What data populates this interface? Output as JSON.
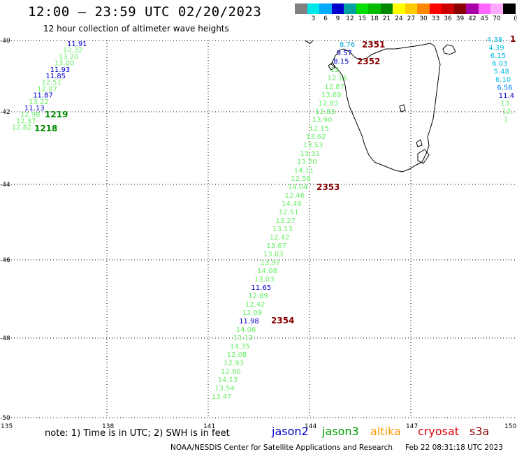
{
  "header": {
    "title": "12:00 – 23:59 UTC 02/20/2023",
    "subtitle": "12 hour collection of altimeter wave heights"
  },
  "legend": {
    "unit": "(ft)",
    "items": [
      {
        "color": "#808080",
        "label": ""
      },
      {
        "color": "#00e8e8",
        "label": "3"
      },
      {
        "color": "#00aaff",
        "label": "6"
      },
      {
        "color": "#0000cc",
        "label": "9"
      },
      {
        "color": "#00a0a0",
        "label": "12"
      },
      {
        "color": "#00dd00",
        "label": "15"
      },
      {
        "color": "#00bb00",
        "label": "18"
      },
      {
        "color": "#008800",
        "label": "21"
      },
      {
        "color": "#ffff00",
        "label": "24"
      },
      {
        "color": "#ffcc00",
        "label": "27"
      },
      {
        "color": "#ff8800",
        "label": "30"
      },
      {
        "color": "#ff0000",
        "label": "33"
      },
      {
        "color": "#cc0000",
        "label": "36"
      },
      {
        "color": "#880000",
        "label": "39"
      },
      {
        "color": "#aa00aa",
        "label": "42"
      },
      {
        "color": "#ff66ff",
        "label": "45"
      },
      {
        "color": "#ffaaff",
        "label": "70"
      },
      {
        "color": "#000000",
        "label": ""
      }
    ]
  },
  "axes": {
    "lat_labels": [
      "-40",
      "-42",
      "-44",
      "-46",
      "-48",
      "-50"
    ],
    "lon_labels": [
      "135",
      "138",
      "141",
      "144",
      "147",
      "150"
    ]
  },
  "footer": {
    "note": "note:  1) Time is in UTC;  2) SWH is in feet",
    "satellites": [
      {
        "name": "jason2",
        "color": "#0000cc"
      },
      {
        "name": "jason3",
        "color": "#009900"
      },
      {
        "name": "altika",
        "color": "#ff9900"
      },
      {
        "name": "cryosat",
        "color": "#dd0000"
      },
      {
        "name": "s3a",
        "color": "#880000"
      }
    ],
    "credit": "NOAA/NESDIS Center for Satellite Applications and Research",
    "timestamp": "Feb 22 08:31:18 UTC 2023"
  },
  "tracks": [
    {
      "name": "track-left",
      "values": [
        {
          "v": "11.91",
          "c": "#0000cc"
        },
        {
          "v": "12.32",
          "c": "#66ee66"
        },
        {
          "v": "13.20",
          "c": "#66ee66"
        },
        {
          "v": "13.00",
          "c": "#66ee66"
        },
        {
          "v": "11.93",
          "c": "#0000cc"
        },
        {
          "v": "11.85",
          "c": "#0000cc"
        },
        {
          "v": "12.51",
          "c": "#66ee66"
        },
        {
          "v": "12.07",
          "c": "#66ee66"
        },
        {
          "v": "11.87",
          "c": "#0000cc"
        },
        {
          "v": "13.22",
          "c": "#66ee66"
        },
        {
          "v": "11.13",
          "c": "#0000cc"
        },
        {
          "v": "12.98",
          "c": "#66ee66"
        },
        {
          "v": "12.37",
          "c": "#66ee66"
        },
        {
          "v": "12.82",
          "c": "#66ee66"
        }
      ]
    },
    {
      "name": "track-center",
      "values": [
        {
          "v": "8.76",
          "c": "#00aadd"
        },
        {
          "v": "9.57",
          "c": "#0000cc"
        },
        {
          "v": "8.15",
          "c": "#0000cc"
        },
        {
          "v": "12",
          "c": "#66ee66"
        },
        {
          "v": "12.16",
          "c": "#66ee66"
        },
        {
          "v": "12.87",
          "c": "#66ee66"
        },
        {
          "v": "13.69",
          "c": "#66ee66"
        },
        {
          "v": "12.83",
          "c": "#66ee66"
        },
        {
          "v": "12.83",
          "c": "#66ee66"
        },
        {
          "v": "13.90",
          "c": "#66ee66"
        },
        {
          "v": "12.15",
          "c": "#66ee66"
        },
        {
          "v": "13.62",
          "c": "#66ee66"
        },
        {
          "v": "13.53",
          "c": "#66ee66"
        },
        {
          "v": "13.31",
          "c": "#66ee66"
        },
        {
          "v": "13.20",
          "c": "#66ee66"
        },
        {
          "v": "14.11",
          "c": "#66ee66"
        },
        {
          "v": "12.58",
          "c": "#66ee66"
        },
        {
          "v": "14.04",
          "c": "#66ee66"
        },
        {
          "v": "12.46",
          "c": "#66ee66"
        },
        {
          "v": "14.49",
          "c": "#66ee66"
        },
        {
          "v": "12.51",
          "c": "#66ee66"
        },
        {
          "v": "13.27",
          "c": "#66ee66"
        },
        {
          "v": "13.13",
          "c": "#66ee66"
        },
        {
          "v": "12.42",
          "c": "#66ee66"
        },
        {
          "v": "13.67",
          "c": "#66ee66"
        },
        {
          "v": "13.03",
          "c": "#66ee66"
        },
        {
          "v": "13.97",
          "c": "#66ee66"
        },
        {
          "v": "14.08",
          "c": "#66ee66"
        },
        {
          "v": "13.03",
          "c": "#66ee66"
        },
        {
          "v": "11.65",
          "c": "#0000cc"
        },
        {
          "v": "12.89",
          "c": "#66ee66"
        },
        {
          "v": "12.42",
          "c": "#66ee66"
        },
        {
          "v": "12.09",
          "c": "#66ee66"
        },
        {
          "v": "11.98",
          "c": "#0000cc"
        },
        {
          "v": "14.06",
          "c": "#66ee66"
        },
        {
          "v": "13.12",
          "c": "#66ee66"
        },
        {
          "v": "14.35",
          "c": "#66ee66"
        },
        {
          "v": "12.08",
          "c": "#66ee66"
        },
        {
          "v": "12.93",
          "c": "#66ee66"
        },
        {
          "v": "12.80",
          "c": "#66ee66"
        },
        {
          "v": "14.13",
          "c": "#66ee66"
        },
        {
          "v": "13.54",
          "c": "#66ee66"
        },
        {
          "v": "13.47",
          "c": "#66ee66"
        }
      ]
    },
    {
      "name": "track-right",
      "values": [
        {
          "v": "4.38",
          "c": "#00bbdd"
        },
        {
          "v": "4.39",
          "c": "#00bbdd"
        },
        {
          "v": "6.15",
          "c": "#00bbdd"
        },
        {
          "v": "6.03",
          "c": "#00bbdd"
        },
        {
          "v": "5.48",
          "c": "#00bbdd"
        },
        {
          "v": "6.10",
          "c": "#00bbdd"
        },
        {
          "v": "6.56",
          "c": "#0088ff"
        },
        {
          "v": "11.4",
          "c": "#0000cc"
        },
        {
          "v": "13.",
          "c": "#66ee66"
        },
        {
          "v": "12.",
          "c": "#66ee66"
        },
        {
          "v": "1",
          "c": "#66ee66"
        }
      ]
    }
  ],
  "time_labels": [
    {
      "v": "1219",
      "c": "#008800"
    },
    {
      "v": "1218",
      "c": "#008800"
    },
    {
      "v": "2351",
      "c": "#880000"
    },
    {
      "v": "2352",
      "c": "#880000"
    },
    {
      "v": "2353",
      "c": "#880000"
    },
    {
      "v": "2354",
      "c": "#880000"
    },
    {
      "v": "1",
      "c": "#880000"
    }
  ]
}
